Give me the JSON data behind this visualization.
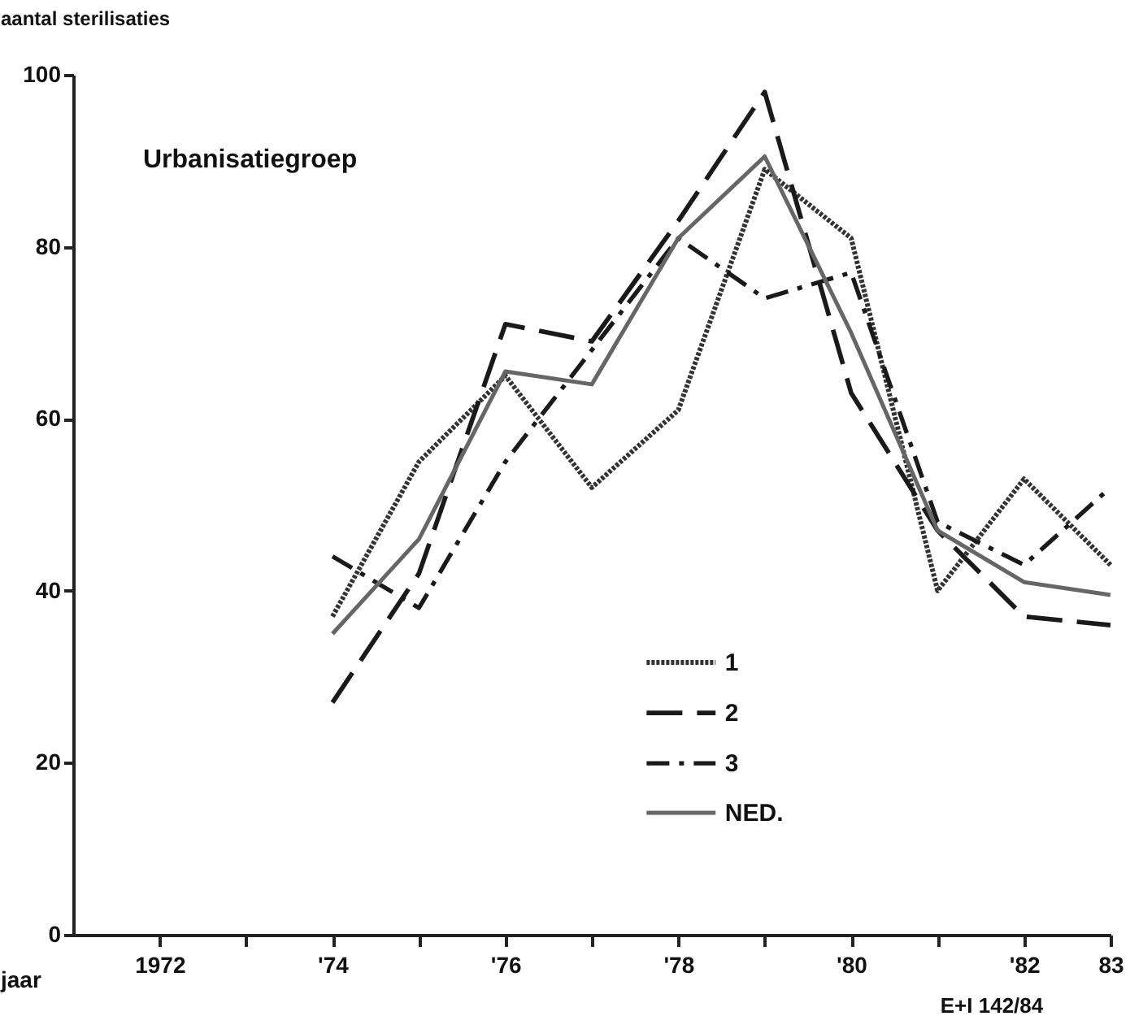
{
  "chart_data": {
    "type": "line",
    "xlabel": "jaar",
    "ylabel": "aantal sterilisaties",
    "legend_title": "Urbanisatiegroep",
    "x": [
      1974,
      1975,
      1976,
      1977,
      1978,
      1979,
      1980,
      1981,
      1982,
      1983
    ],
    "series": [
      {
        "name": "1",
        "color": "#333333",
        "line_style": "dotted",
        "values": [
          37,
          55,
          65,
          52,
          61,
          89,
          81,
          40,
          53,
          43
        ]
      },
      {
        "name": "2",
        "color": "#1a1a1a",
        "line_style": "dashed",
        "values": [
          27,
          42,
          71,
          69,
          83,
          98,
          63,
          47,
          37,
          36
        ]
      },
      {
        "name": "3",
        "color": "#1a1a1a",
        "line_style": "dashdot",
        "values": [
          44,
          38,
          55,
          68,
          81,
          74,
          77,
          48,
          43,
          52
        ]
      },
      {
        "name": "NED.",
        "color": "#666666",
        "line_style": "solid",
        "values": [
          35,
          46,
          65.5,
          64,
          81,
          90.5,
          70,
          47,
          41,
          39.5
        ]
      }
    ],
    "xlim": [
      1971,
      1983
    ],
    "xticks": [
      {
        "value": 1972,
        "label": "1972"
      },
      {
        "value": 1973,
        "label": null
      },
      {
        "value": 1974,
        "label": "'74"
      },
      {
        "value": 1975,
        "label": null
      },
      {
        "value": 1976,
        "label": "'76"
      },
      {
        "value": 1977,
        "label": null
      },
      {
        "value": 1978,
        "label": "'78"
      },
      {
        "value": 1979,
        "label": null
      },
      {
        "value": 1980,
        "label": "'80"
      },
      {
        "value": 1981,
        "label": null
      },
      {
        "value": 1982,
        "label": "'82"
      },
      {
        "value": 1983,
        "label": "83"
      }
    ],
    "ylim": [
      0,
      100
    ],
    "yticks": [
      0,
      20,
      40,
      60,
      80,
      100
    ],
    "grid": false,
    "legend": "bottom",
    "marker": "none",
    "annotations": [
      "E+I 142/84"
    ]
  }
}
